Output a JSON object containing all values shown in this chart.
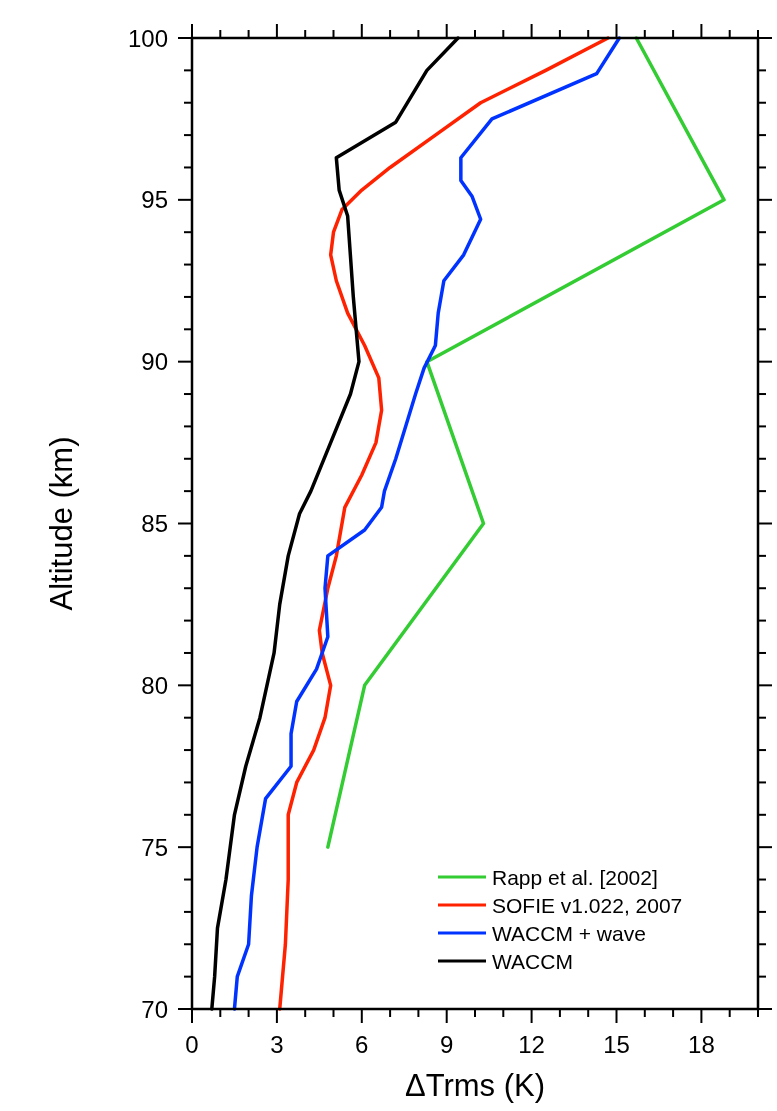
{
  "chart_data": {
    "type": "line",
    "xlabel": "ΔTrms (K)",
    "ylabel": "Altitude (km)",
    "xlim": [
      0,
      20
    ],
    "ylim": [
      70,
      100
    ],
    "xticks": [
      0,
      {
        "value": 1,
        "label": null
      },
      {
        "value": 2,
        "label": null
      },
      3,
      {
        "value": 4,
        "label": null
      },
      {
        "value": 5,
        "label": null
      },
      6,
      {
        "value": 7,
        "label": null
      },
      {
        "value": 8,
        "label": null
      },
      9,
      {
        "value": 10,
        "label": null
      },
      {
        "value": 11,
        "label": null
      },
      12,
      {
        "value": 13,
        "label": null
      },
      {
        "value": 14,
        "label": null
      },
      15,
      {
        "value": 16,
        "label": null
      },
      {
        "value": 17,
        "label": null
      },
      18,
      {
        "value": 19,
        "label": null
      },
      {
        "value": 20,
        "label": null
      }
    ],
    "yticks": [
      70,
      {
        "value": 71,
        "label": null
      },
      {
        "value": 72,
        "label": null
      },
      {
        "value": 73,
        "label": null
      },
      {
        "value": 74,
        "label": null
      },
      75,
      {
        "value": 76,
        "label": null
      },
      {
        "value": 77,
        "label": null
      },
      {
        "value": 78,
        "label": null
      },
      {
        "value": 79,
        "label": null
      },
      80,
      {
        "value": 81,
        "label": null
      },
      {
        "value": 82,
        "label": null
      },
      {
        "value": 83,
        "label": null
      },
      {
        "value": 84,
        "label": null
      },
      85,
      {
        "value": 86,
        "label": null
      },
      {
        "value": 87,
        "label": null
      },
      {
        "value": 88,
        "label": null
      },
      {
        "value": 89,
        "label": null
      },
      90,
      {
        "value": 91,
        "label": null
      },
      {
        "value": 92,
        "label": null
      },
      {
        "value": 93,
        "label": null
      },
      {
        "value": 94,
        "label": null
      },
      95,
      {
        "value": 96,
        "label": null
      },
      {
        "value": 97,
        "label": null
      },
      {
        "value": 98,
        "label": null
      },
      {
        "value": 99,
        "label": null
      },
      100
    ],
    "grid": false,
    "legend": "bottom right",
    "marker": "none",
    "line_style": "solid",
    "series": [
      {
        "name": "Rapp et al. [2002]",
        "color": "#33cc33",
        "x": [
          15.7,
          18.8,
          8.3,
          10.3,
          6.1,
          4.8
        ],
        "values": [
          100,
          95,
          90,
          85,
          80,
          75
        ]
      },
      {
        "name": "SOFIE v1.022, 2007",
        "color": "#ff2200",
        "x": [
          14.7,
          12.5,
          10.2,
          8.6,
          7.0,
          6.0,
          5.3,
          5.0,
          4.9,
          5.1,
          5.5,
          6.1,
          6.6,
          6.7,
          6.5,
          6.0,
          5.4,
          5.1,
          4.8,
          4.5,
          4.6,
          4.9,
          4.7,
          4.3,
          3.7,
          3.4,
          3.4,
          3.3,
          3.1
        ],
        "values": [
          100,
          99,
          98,
          97,
          96,
          95.3,
          94.7,
          94,
          93.3,
          92.5,
          91.5,
          90.5,
          89.5,
          88.5,
          87.5,
          86.5,
          85.5,
          84,
          83,
          81.7,
          81,
          80,
          79,
          78,
          77,
          76,
          74,
          72,
          70
        ]
      },
      {
        "name": "WACCM + wave",
        "color": "#0033ff",
        "x": [
          15.1,
          14.3,
          10.6,
          9.5,
          9.5,
          9.9,
          10.2,
          9.6,
          8.9,
          8.7,
          8.6,
          8.2,
          7.9,
          7.2,
          6.8,
          6.7,
          6.1,
          4.8,
          4.7,
          4.8,
          4.4,
          3.7,
          3.5,
          3.5,
          2.6,
          2.3,
          2.1,
          2.0,
          1.6,
          1.5
        ],
        "values": [
          100,
          98.9,
          97.5,
          96.3,
          95.6,
          95.1,
          94.4,
          93.3,
          92.5,
          91.5,
          90.5,
          89.8,
          89,
          87,
          86,
          85.5,
          84.8,
          84,
          83,
          81.5,
          80.5,
          79.5,
          78.5,
          77.5,
          76.5,
          75,
          73.5,
          72,
          71,
          70
        ]
      },
      {
        "name": "WACCM",
        "color": "#000000",
        "x": [
          9.4,
          8.3,
          7.2,
          5.1,
          5.2,
          5.5,
          5.7,
          5.9,
          5.6,
          4.9,
          4.2,
          3.8,
          3.4,
          3.1,
          2.9,
          2.4,
          1.9,
          1.5,
          1.2,
          0.9,
          0.8,
          0.7
        ],
        "values": [
          100,
          99,
          97.4,
          96.3,
          95.3,
          94.5,
          92,
          90,
          89,
          87.5,
          86,
          85.3,
          84,
          82.5,
          81,
          79,
          77.5,
          76,
          74,
          72.5,
          71,
          70
        ]
      }
    ]
  }
}
